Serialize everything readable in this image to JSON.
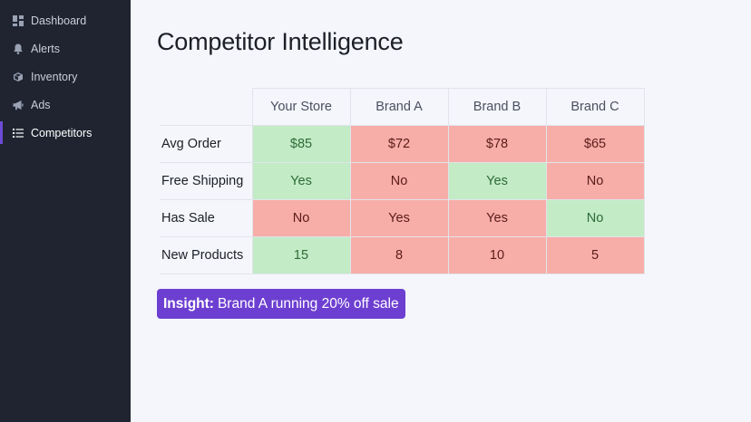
{
  "sidebar": {
    "items": [
      {
        "label": "Dashboard",
        "icon": "dashboard-icon",
        "active": false
      },
      {
        "label": "Alerts",
        "icon": "bell-icon",
        "active": false
      },
      {
        "label": "Inventory",
        "icon": "box-icon",
        "active": false
      },
      {
        "label": "Ads",
        "icon": "megaphone-icon",
        "active": false
      },
      {
        "label": "Competitors",
        "icon": "list-icon",
        "active": true
      }
    ]
  },
  "main": {
    "title": "Competitor Intelligence",
    "table": {
      "columns": [
        "Your Store",
        "Brand A",
        "Brand B",
        "Brand C"
      ],
      "rows": [
        {
          "label": "Avg Order",
          "cells": [
            {
              "value": "$85",
              "status": "good"
            },
            {
              "value": "$72",
              "status": "bad"
            },
            {
              "value": "$78",
              "status": "bad"
            },
            {
              "value": "$65",
              "status": "bad"
            }
          ]
        },
        {
          "label": "Free Shipping",
          "cells": [
            {
              "value": "Yes",
              "status": "good"
            },
            {
              "value": "No",
              "status": "bad"
            },
            {
              "value": "Yes",
              "status": "good"
            },
            {
              "value": "No",
              "status": "bad"
            }
          ]
        },
        {
          "label": "Has Sale",
          "cells": [
            {
              "value": "No",
              "status": "bad"
            },
            {
              "value": "Yes",
              "status": "bad"
            },
            {
              "value": "Yes",
              "status": "bad"
            },
            {
              "value": "No",
              "status": "good"
            }
          ]
        },
        {
          "label": "New Products",
          "cells": [
            {
              "value": "15",
              "status": "good"
            },
            {
              "value": "8",
              "status": "bad"
            },
            {
              "value": "10",
              "status": "bad"
            },
            {
              "value": "5",
              "status": "bad"
            }
          ]
        }
      ]
    },
    "insight": {
      "prefix": "Insight:",
      "text": "Brand A running 20% off sale"
    }
  },
  "colors": {
    "sidebar_bg": "#1f2430",
    "accent": "#6d3fd1",
    "good_bg": "#c2ebc6",
    "bad_bg": "#f7ada8"
  }
}
